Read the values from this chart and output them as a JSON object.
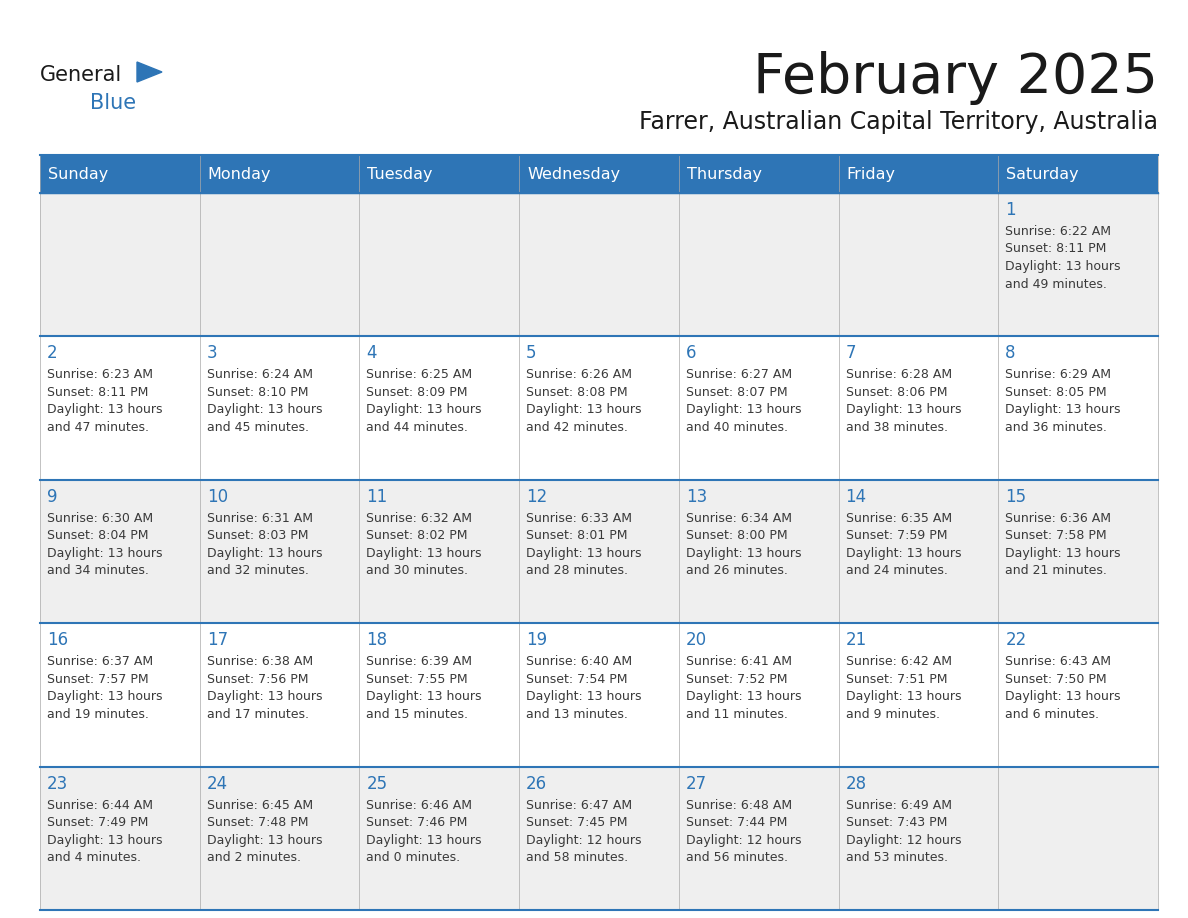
{
  "title": "February 2025",
  "subtitle": "Farrer, Australian Capital Territory, Australia",
  "days_of_week": [
    "Sunday",
    "Monday",
    "Tuesday",
    "Wednesday",
    "Thursday",
    "Friday",
    "Saturday"
  ],
  "header_bg": "#2E75B6",
  "header_text": "#FFFFFF",
  "cell_bg_odd": "#EFEFEF",
  "cell_bg_even": "#FFFFFF",
  "border_color": "#2E75B6",
  "day_number_color": "#2E75B6",
  "info_text_color": "#3a3a3a",
  "title_color": "#1a1a1a",
  "subtitle_color": "#1a1a1a",
  "logo_general_color": "#1a1a1a",
  "logo_blue_color": "#2E75B6",
  "weeks": [
    [
      null,
      null,
      null,
      null,
      null,
      null,
      1
    ],
    [
      2,
      3,
      4,
      5,
      6,
      7,
      8
    ],
    [
      9,
      10,
      11,
      12,
      13,
      14,
      15
    ],
    [
      16,
      17,
      18,
      19,
      20,
      21,
      22
    ],
    [
      23,
      24,
      25,
      26,
      27,
      28,
      null
    ]
  ],
  "cell_data": {
    "1": {
      "sunrise": "6:22 AM",
      "sunset": "8:11 PM",
      "daylight_h": "13 hours",
      "daylight_m": "49 minutes"
    },
    "2": {
      "sunrise": "6:23 AM",
      "sunset": "8:11 PM",
      "daylight_h": "13 hours",
      "daylight_m": "47 minutes"
    },
    "3": {
      "sunrise": "6:24 AM",
      "sunset": "8:10 PM",
      "daylight_h": "13 hours",
      "daylight_m": "45 minutes"
    },
    "4": {
      "sunrise": "6:25 AM",
      "sunset": "8:09 PM",
      "daylight_h": "13 hours",
      "daylight_m": "44 minutes"
    },
    "5": {
      "sunrise": "6:26 AM",
      "sunset": "8:08 PM",
      "daylight_h": "13 hours",
      "daylight_m": "42 minutes"
    },
    "6": {
      "sunrise": "6:27 AM",
      "sunset": "8:07 PM",
      "daylight_h": "13 hours",
      "daylight_m": "40 minutes"
    },
    "7": {
      "sunrise": "6:28 AM",
      "sunset": "8:06 PM",
      "daylight_h": "13 hours",
      "daylight_m": "38 minutes"
    },
    "8": {
      "sunrise": "6:29 AM",
      "sunset": "8:05 PM",
      "daylight_h": "13 hours",
      "daylight_m": "36 minutes"
    },
    "9": {
      "sunrise": "6:30 AM",
      "sunset": "8:04 PM",
      "daylight_h": "13 hours",
      "daylight_m": "34 minutes"
    },
    "10": {
      "sunrise": "6:31 AM",
      "sunset": "8:03 PM",
      "daylight_h": "13 hours",
      "daylight_m": "32 minutes"
    },
    "11": {
      "sunrise": "6:32 AM",
      "sunset": "8:02 PM",
      "daylight_h": "13 hours",
      "daylight_m": "30 minutes"
    },
    "12": {
      "sunrise": "6:33 AM",
      "sunset": "8:01 PM",
      "daylight_h": "13 hours",
      "daylight_m": "28 minutes"
    },
    "13": {
      "sunrise": "6:34 AM",
      "sunset": "8:00 PM",
      "daylight_h": "13 hours",
      "daylight_m": "26 minutes"
    },
    "14": {
      "sunrise": "6:35 AM",
      "sunset": "7:59 PM",
      "daylight_h": "13 hours",
      "daylight_m": "24 minutes"
    },
    "15": {
      "sunrise": "6:36 AM",
      "sunset": "7:58 PM",
      "daylight_h": "13 hours",
      "daylight_m": "21 minutes"
    },
    "16": {
      "sunrise": "6:37 AM",
      "sunset": "7:57 PM",
      "daylight_h": "13 hours",
      "daylight_m": "19 minutes"
    },
    "17": {
      "sunrise": "6:38 AM",
      "sunset": "7:56 PM",
      "daylight_h": "13 hours",
      "daylight_m": "17 minutes"
    },
    "18": {
      "sunrise": "6:39 AM",
      "sunset": "7:55 PM",
      "daylight_h": "13 hours",
      "daylight_m": "15 minutes"
    },
    "19": {
      "sunrise": "6:40 AM",
      "sunset": "7:54 PM",
      "daylight_h": "13 hours",
      "daylight_m": "13 minutes"
    },
    "20": {
      "sunrise": "6:41 AM",
      "sunset": "7:52 PM",
      "daylight_h": "13 hours",
      "daylight_m": "11 minutes"
    },
    "21": {
      "sunrise": "6:42 AM",
      "sunset": "7:51 PM",
      "daylight_h": "13 hours",
      "daylight_m": "9 minutes"
    },
    "22": {
      "sunrise": "6:43 AM",
      "sunset": "7:50 PM",
      "daylight_h": "13 hours",
      "daylight_m": "6 minutes"
    },
    "23": {
      "sunrise": "6:44 AM",
      "sunset": "7:49 PM",
      "daylight_h": "13 hours",
      "daylight_m": "4 minutes"
    },
    "24": {
      "sunrise": "6:45 AM",
      "sunset": "7:48 PM",
      "daylight_h": "13 hours",
      "daylight_m": "2 minutes"
    },
    "25": {
      "sunrise": "6:46 AM",
      "sunset": "7:46 PM",
      "daylight_h": "13 hours",
      "daylight_m": "0 minutes"
    },
    "26": {
      "sunrise": "6:47 AM",
      "sunset": "7:45 PM",
      "daylight_h": "12 hours",
      "daylight_m": "58 minutes"
    },
    "27": {
      "sunrise": "6:48 AM",
      "sunset": "7:44 PM",
      "daylight_h": "12 hours",
      "daylight_m": "56 minutes"
    },
    "28": {
      "sunrise": "6:49 AM",
      "sunset": "7:43 PM",
      "daylight_h": "12 hours",
      "daylight_m": "53 minutes"
    }
  }
}
